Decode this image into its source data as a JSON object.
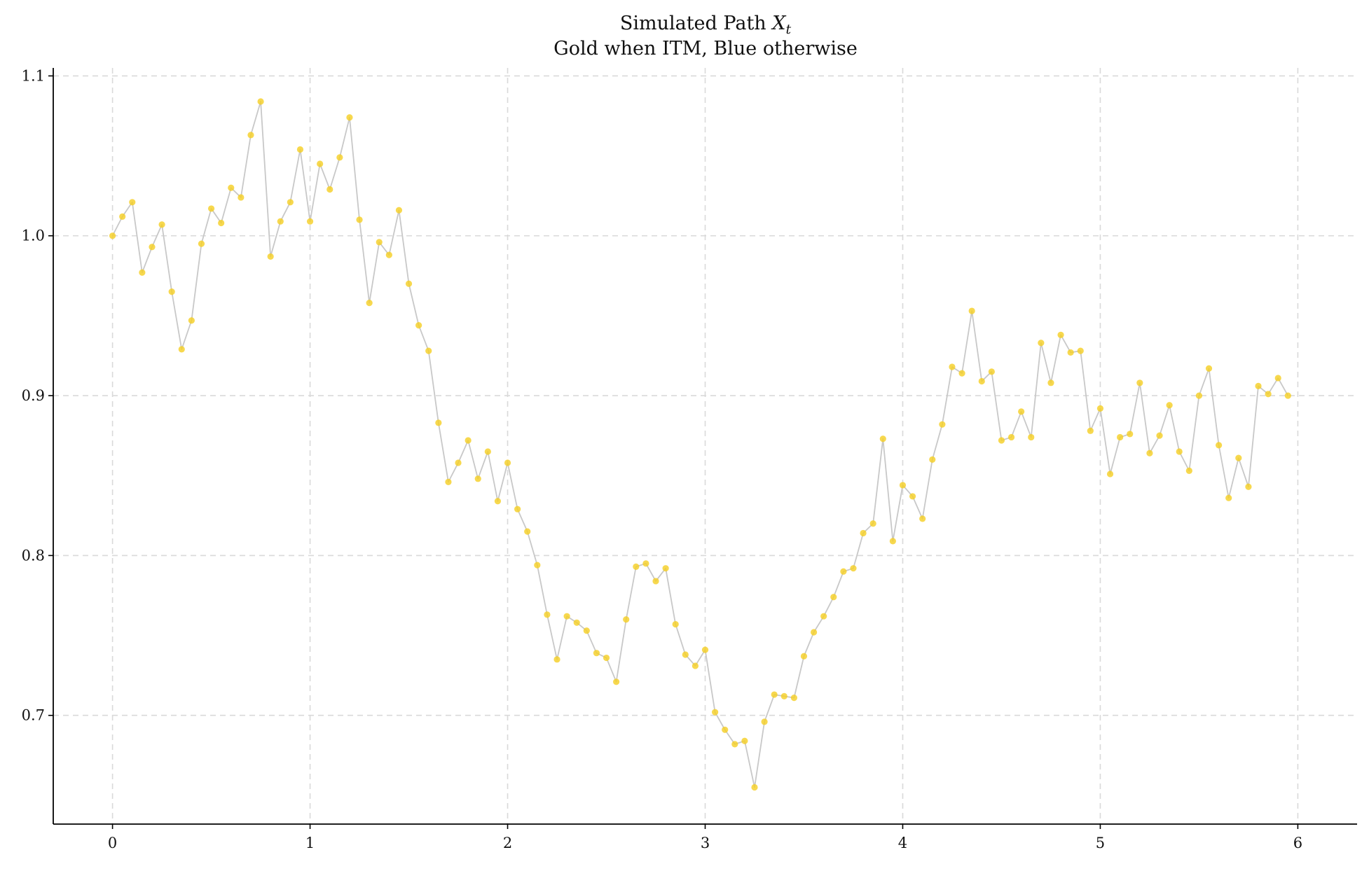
{
  "chart_data": {
    "type": "scatter",
    "title": "Simulated Path ",
    "title_var": "X",
    "title_sub": "t",
    "subtitle": "Gold when ITM, Blue otherwise",
    "xlabel": "",
    "ylabel": "",
    "xlim": [
      -0.3,
      6.3
    ],
    "ylim": [
      0.632,
      1.105
    ],
    "x_ticks": [
      0,
      1,
      2,
      3,
      4,
      5,
      6
    ],
    "x_tick_labels": [
      "0",
      "1",
      "2",
      "3",
      "4",
      "5",
      "6"
    ],
    "y_ticks": [
      0.7,
      0.8,
      0.9,
      1.0,
      1.1
    ],
    "y_tick_labels": [
      "0.7",
      "0.8",
      "0.9",
      "1.0",
      "1.1"
    ],
    "grid": true,
    "colors": {
      "itm_marker": "#f5d027",
      "otm_marker": "#1f77b4",
      "path_line": "#c8c8c8",
      "grid": "#d9d9d9",
      "axis": "#000000"
    },
    "series": [
      {
        "x_start": 0,
        "x_step": 0.05,
        "values": [
          1.0,
          1.012,
          1.021,
          0.977,
          0.993,
          1.007,
          0.965,
          0.929,
          0.947,
          0.995,
          1.017,
          1.008,
          1.03,
          1.024,
          1.063,
          1.084,
          0.987,
          1.009,
          1.021,
          1.054,
          1.009,
          1.045,
          1.029,
          1.049,
          1.074,
          1.01,
          0.958,
          0.996,
          0.988,
          1.016,
          0.97,
          0.944,
          0.928,
          0.883,
          0.846,
          0.858,
          0.872,
          0.848,
          0.865,
          0.834,
          0.858,
          0.829,
          0.815,
          0.794,
          0.763,
          0.735,
          0.762,
          0.758,
          0.753,
          0.739,
          0.736,
          0.721,
          0.76,
          0.793,
          0.795,
          0.784,
          0.792,
          0.757,
          0.738,
          0.731,
          0.741,
          0.702,
          0.691,
          0.682,
          0.684,
          0.655,
          0.696,
          0.713,
          0.712,
          0.711,
          0.737,
          0.752,
          0.762,
          0.774,
          0.79,
          0.792,
          0.814,
          0.82,
          0.873,
          0.809,
          0.844,
          0.837,
          0.823,
          0.86,
          0.882,
          0.918,
          0.914,
          0.953,
          0.909,
          0.915,
          0.872,
          0.874,
          0.89,
          0.874,
          0.933,
          0.908,
          0.938,
          0.927,
          0.928,
          0.878,
          0.892,
          0.851,
          0.874,
          0.876,
          0.908,
          0.864,
          0.875,
          0.894,
          0.865,
          0.853,
          0.9,
          0.917,
          0.869,
          0.836,
          0.861,
          0.843,
          0.906,
          0.901,
          0.911,
          0.9
        ],
        "itm": "all"
      }
    ]
  }
}
